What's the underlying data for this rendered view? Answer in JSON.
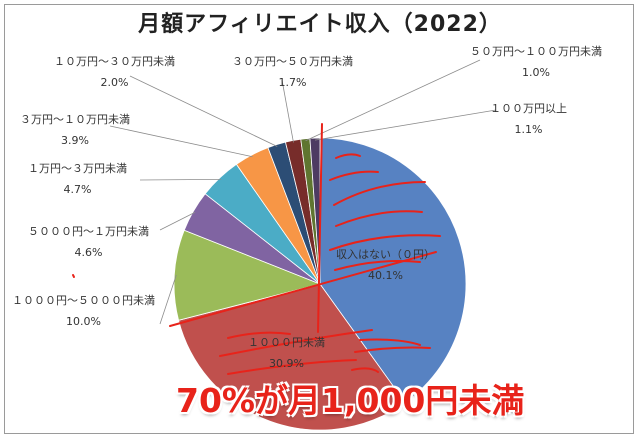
{
  "chart_data": {
    "type": "pie",
    "title": "月額アフィリエイト収入（2022）",
    "slices": [
      {
        "label": "収入はない（０円）",
        "pct_label": "40.1%",
        "value": 40.1,
        "color": "#5782c2"
      },
      {
        "label": "１０００円未満",
        "pct_label": "30.9%",
        "value": 30.9,
        "color": "#c0504d"
      },
      {
        "label": "１０００円～５０００円未満",
        "pct_label": "10.0%",
        "value": 10.0,
        "color": "#9bbb59"
      },
      {
        "label": "５０００円～１万円未満",
        "pct_label": "4.6%",
        "value": 4.6,
        "color": "#8064a2"
      },
      {
        "label": "１万円～３万円未満",
        "pct_label": "4.7%",
        "value": 4.7,
        "color": "#4bacc6"
      },
      {
        "label": "３万円～１０万円未満",
        "pct_label": "3.9%",
        "value": 3.9,
        "color": "#f79646"
      },
      {
        "label": "１０万円～３０万円未満",
        "pct_label": "2.0%",
        "value": 2.0,
        "color": "#2c4d75"
      },
      {
        "label": "３０万円～５０万円未満",
        "pct_label": "1.7%",
        "value": 1.7,
        "color": "#772c2a"
      },
      {
        "label": "５０万円～１００万円未満",
        "pct_label": "1.0%",
        "value": 1.0,
        "color": "#5f7530"
      },
      {
        "label": "１００万円以上",
        "pct_label": "1.1%",
        "value": 1.1,
        "color": "#4d3b62"
      }
    ],
    "start_angle_deg": 0,
    "direction": "clockwise",
    "legend": "none"
  },
  "callout": "70%が月1,000円未満",
  "colors": {
    "callout": "#e8231a",
    "annotation_strokes": "#e8231a"
  }
}
